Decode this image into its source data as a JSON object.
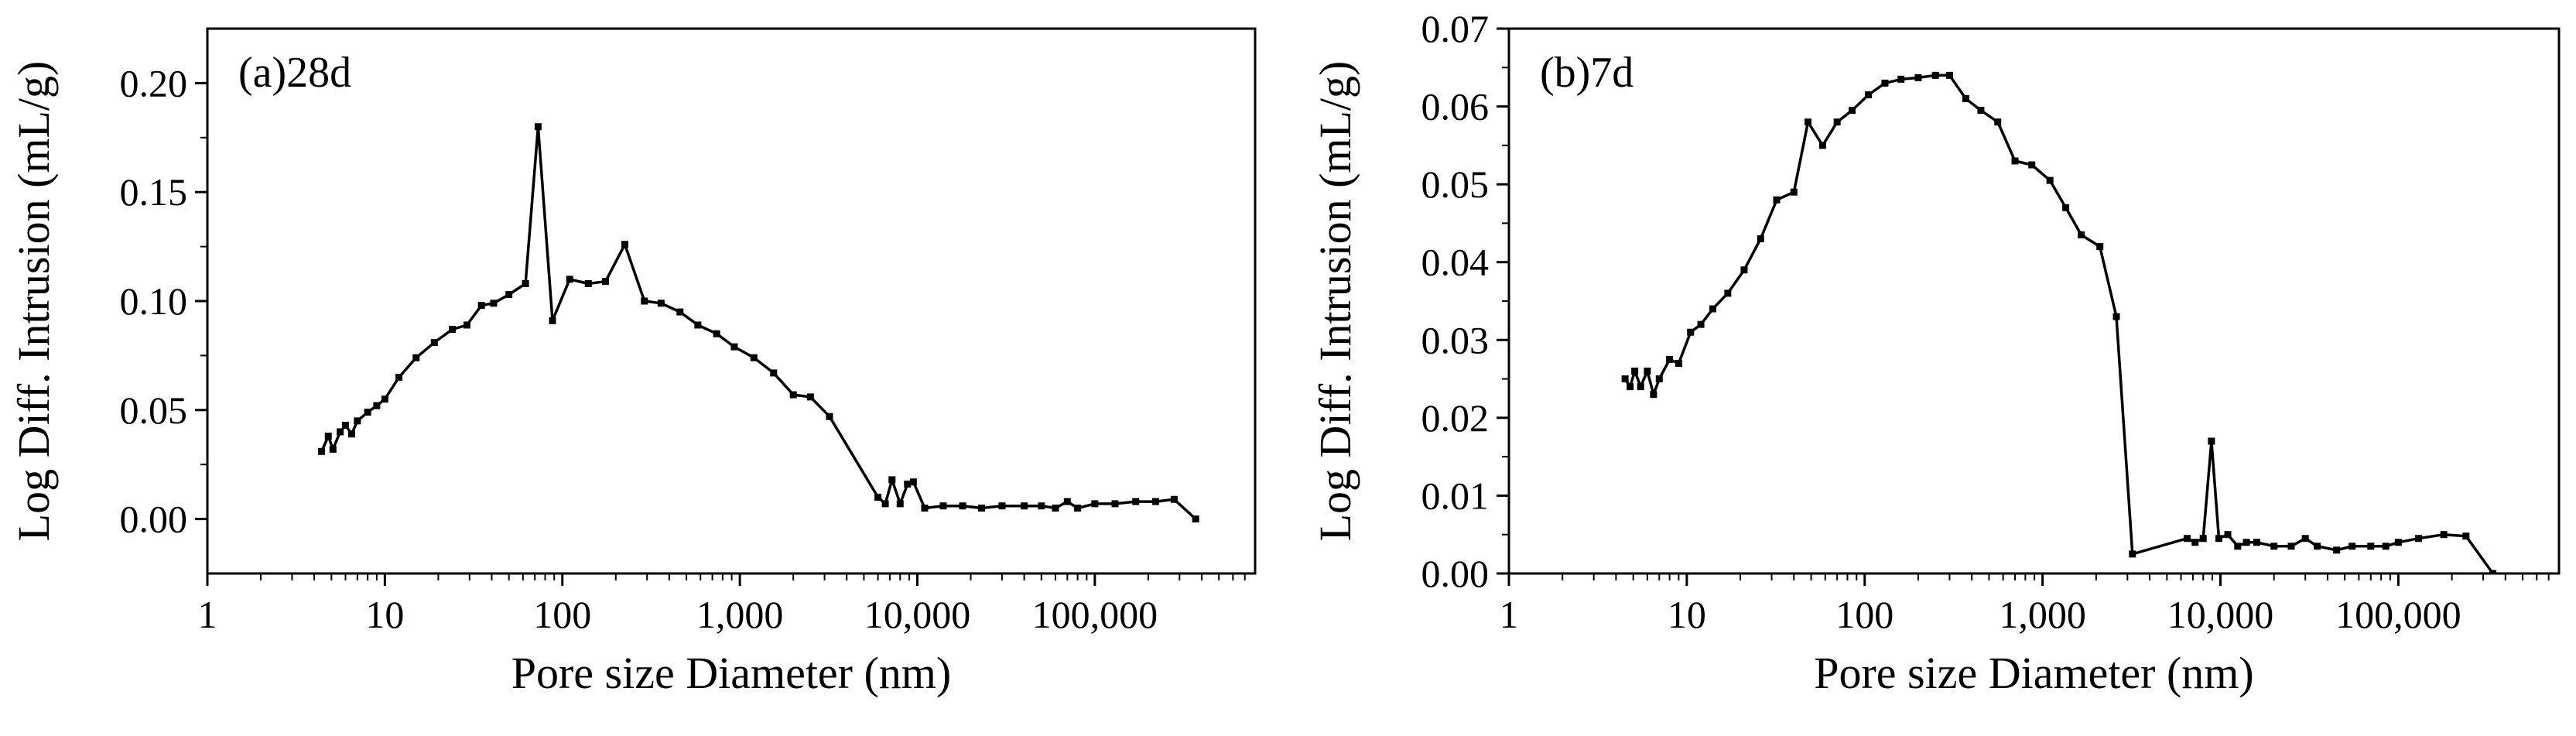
{
  "chart_data": [
    {
      "type": "line",
      "panel_label": "(a)28d",
      "xlabel": "Pore size Diameter (nm)",
      "ylabel": "Log Diff. Intrusion (mL/g)",
      "xscale": "log",
      "xlim": [
        1,
        800000
      ],
      "ylim": [
        -0.025,
        0.225
      ],
      "x_ticks": [
        1,
        10,
        100,
        1000,
        10000,
        100000
      ],
      "x_tick_labels": [
        "1",
        "10",
        "100",
        "1,000",
        "10,000",
        "100,000"
      ],
      "y_ticks": [
        0.0,
        0.05,
        0.1,
        0.15,
        0.2
      ],
      "y_tick_labels": [
        "0.00",
        "0.05",
        "0.10",
        "0.15",
        "0.20"
      ],
      "grid": false,
      "line_color": "#000000",
      "series": [
        {
          "x": [
            4.4,
            4.8,
            5.1,
            5.6,
            6.0,
            6.5,
            7.0,
            8.0,
            9.0,
            10.0,
            12.0,
            15.0,
            19.0,
            24.0,
            29.0,
            35.0,
            41.0,
            50.0,
            62.0,
            73.0,
            88.0,
            110.0,
            140.0,
            175.0,
            225.0,
            290.0,
            360.0,
            460.0,
            580.0,
            740.0,
            930.0,
            1200.0,
            1550.0,
            2000.0,
            2500.0,
            3200.0,
            6000.0,
            6600.0,
            7200.0,
            8000.0,
            8800.0,
            9500.0,
            11000.0,
            14000.0,
            18000.0,
            23000.0,
            30000.0,
            40000.0,
            50000.0,
            60000.0,
            70000.0,
            80000.0,
            100000.0,
            130000.0,
            170000.0,
            220000.0,
            280000.0,
            370000.0
          ],
          "y": [
            0.031,
            0.038,
            0.032,
            0.04,
            0.043,
            0.039,
            0.045,
            0.049,
            0.052,
            0.055,
            0.065,
            0.074,
            0.081,
            0.087,
            0.089,
            0.098,
            0.099,
            0.103,
            0.108,
            0.18,
            0.091,
            0.11,
            0.108,
            0.109,
            0.126,
            0.1,
            0.099,
            0.095,
            0.089,
            0.085,
            0.079,
            0.074,
            0.067,
            0.057,
            0.056,
            0.047,
            0.01,
            0.007,
            0.018,
            0.007,
            0.016,
            0.017,
            0.005,
            0.006,
            0.006,
            0.005,
            0.006,
            0.006,
            0.006,
            0.005,
            0.008,
            0.005,
            0.007,
            0.007,
            0.008,
            0.008,
            0.009,
            0.0
          ]
        }
      ]
    },
    {
      "type": "line",
      "panel_label": "(b)7d",
      "xlabel": "Pore size Diameter (nm)",
      "ylabel": "Log Diff. Intrusion (mL/g)",
      "xscale": "log",
      "xlim": [
        1,
        800000
      ],
      "ylim": [
        0.0,
        0.07
      ],
      "x_ticks": [
        1,
        10,
        100,
        1000,
        10000,
        100000
      ],
      "x_tick_labels": [
        "1",
        "10",
        "100",
        "1,000",
        "10,000",
        "100,000"
      ],
      "y_ticks": [
        0.0,
        0.01,
        0.02,
        0.03,
        0.04,
        0.05,
        0.06,
        0.07
      ],
      "y_tick_labels": [
        "0.00",
        "0.01",
        "0.02",
        "0.03",
        "0.04",
        "0.05",
        "0.06",
        "0.07"
      ],
      "grid": false,
      "line_color": "#000000",
      "series": [
        {
          "x": [
            4.5,
            4.8,
            5.1,
            5.5,
            6.0,
            6.5,
            7.0,
            8.0,
            9.0,
            10.5,
            12.0,
            14.0,
            17.0,
            21.0,
            26.0,
            32.0,
            40.0,
            48.0,
            58.0,
            70.0,
            85.0,
            105.0,
            130.0,
            160.0,
            200.0,
            250.0,
            300.0,
            370.0,
            450.0,
            560.0,
            700.0,
            870.0,
            1100.0,
            1350.0,
            1650.0,
            2100.0,
            2600.0,
            3200.0,
            6500.0,
            7200.0,
            8000.0,
            8900.0,
            9800.0,
            11000.0,
            12500.0,
            14000.0,
            16000.0,
            20000.0,
            25000.0,
            30000.0,
            35000.0,
            45000.0,
            55000.0,
            70000.0,
            85000.0,
            100000.0,
            130000.0,
            180000.0,
            240000.0,
            340000.0
          ],
          "y": [
            0.025,
            0.024,
            0.026,
            0.024,
            0.026,
            0.023,
            0.025,
            0.0275,
            0.027,
            0.031,
            0.032,
            0.034,
            0.036,
            0.039,
            0.043,
            0.048,
            0.049,
            0.058,
            0.055,
            0.058,
            0.0595,
            0.0615,
            0.063,
            0.0635,
            0.0637,
            0.064,
            0.064,
            0.061,
            0.0595,
            0.058,
            0.053,
            0.0525,
            0.0505,
            0.047,
            0.0435,
            0.042,
            0.033,
            0.0025,
            0.0045,
            0.004,
            0.0045,
            0.017,
            0.0045,
            0.005,
            0.0035,
            0.004,
            0.004,
            0.0035,
            0.0035,
            0.0045,
            0.0035,
            0.003,
            0.0035,
            0.0035,
            0.0035,
            0.004,
            0.0045,
            0.005,
            0.0048,
            0.0
          ]
        }
      ]
    }
  ]
}
